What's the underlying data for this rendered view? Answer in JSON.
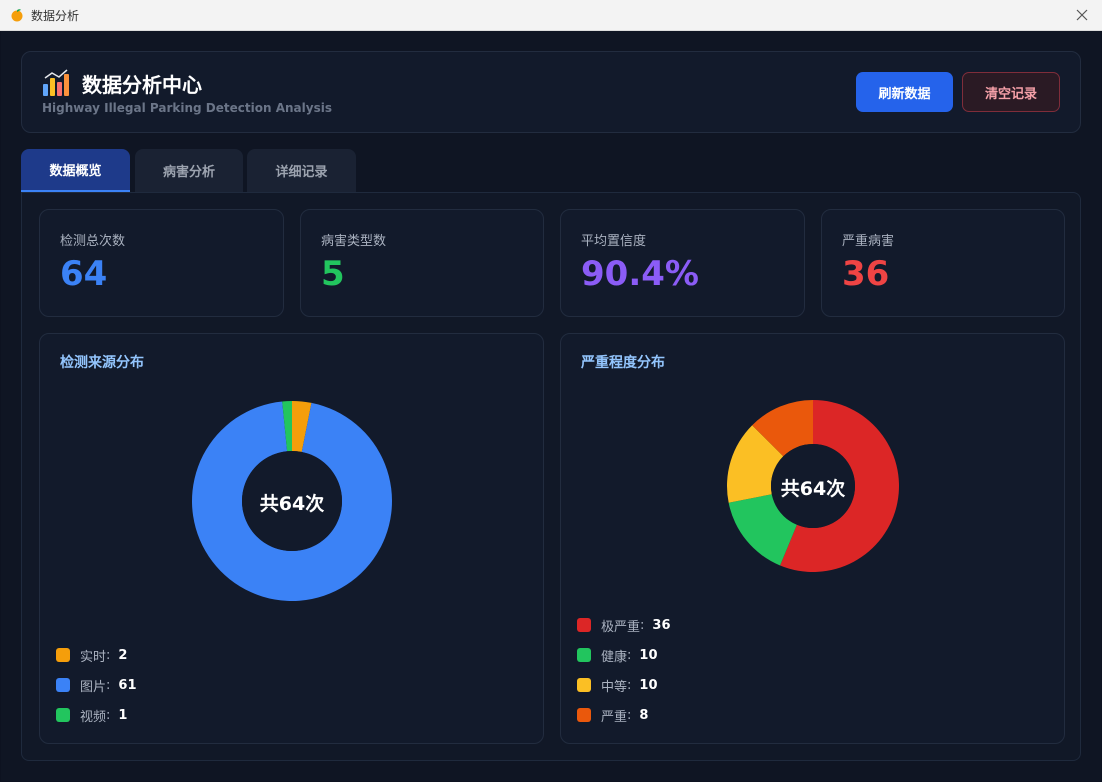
{
  "window": {
    "title": "数据分析"
  },
  "header": {
    "title": "数据分析中心",
    "subtitle": "Highway Illegal Parking Detection Analysis",
    "refresh_label": "刷新数据",
    "clear_label": "清空记录"
  },
  "tabs": [
    {
      "label": "数据概览",
      "active": true
    },
    {
      "label": "病害分析",
      "active": false
    },
    {
      "label": "详细记录",
      "active": false
    }
  ],
  "stats": [
    {
      "label": "检测总次数",
      "value": "64",
      "color": "#3b82f6"
    },
    {
      "label": "病害类型数",
      "value": "5",
      "color": "#22c55e"
    },
    {
      "label": "平均置信度",
      "value": "90.4%",
      "color": "#8b5cf6"
    },
    {
      "label": "严重病害",
      "value": "36",
      "color": "#ef4444"
    }
  ],
  "chart_data": [
    {
      "type": "pie",
      "title": "检测来源分布",
      "center_text": "共64次",
      "categories": [
        "实时",
        "图片",
        "视频"
      ],
      "values": [
        2,
        61,
        1
      ],
      "colors": [
        "#f59e0b",
        "#3b82f6",
        "#22c55e"
      ],
      "legend": [
        {
          "name": "实时",
          "value": "2"
        },
        {
          "name": "图片",
          "value": "61"
        },
        {
          "name": "视频",
          "value": "1"
        }
      ]
    },
    {
      "type": "pie",
      "title": "严重程度分布",
      "center_text": "共64次",
      "categories": [
        "极严重",
        "健康",
        "中等",
        "严重"
      ],
      "values": [
        36,
        10,
        10,
        8
      ],
      "colors": [
        "#dc2626",
        "#22c55e",
        "#fbbf24",
        "#ea580c"
      ],
      "legend": [
        {
          "name": "极严重",
          "value": "36"
        },
        {
          "name": "健康",
          "value": "10"
        },
        {
          "name": "中等",
          "value": "10"
        },
        {
          "name": "严重",
          "value": "8"
        }
      ]
    }
  ]
}
